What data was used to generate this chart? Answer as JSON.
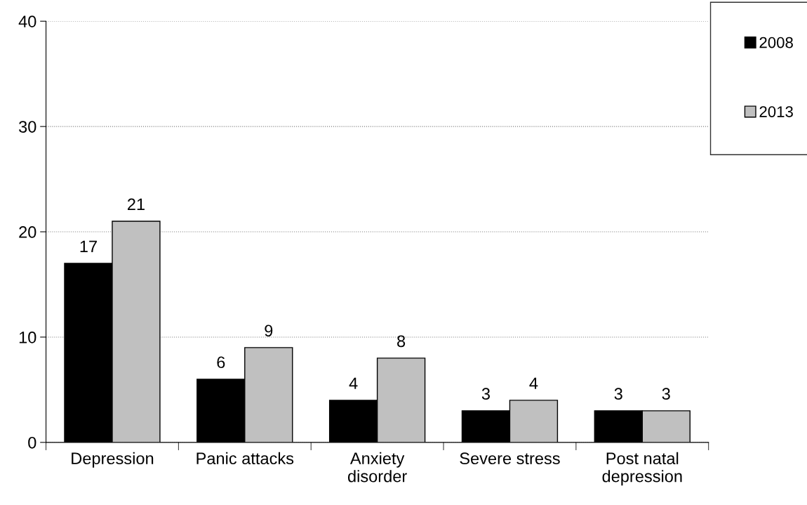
{
  "chart_data": {
    "type": "bar",
    "categories": [
      "Depression",
      "Panic attacks",
      "Anxiety disorder",
      "Severe stress",
      "Post natal depression"
    ],
    "series": [
      {
        "name": "2008",
        "color": "#000000",
        "values": [
          17,
          6,
          4,
          3,
          3
        ]
      },
      {
        "name": "2013",
        "color": "#c0c0c0",
        "values": [
          21,
          9,
          8,
          4,
          3
        ]
      }
    ],
    "ylim": [
      0,
      40
    ],
    "yticks": [
      0,
      10,
      20,
      30,
      40
    ],
    "grid": "y",
    "legend": "top right",
    "data_labels": true
  }
}
